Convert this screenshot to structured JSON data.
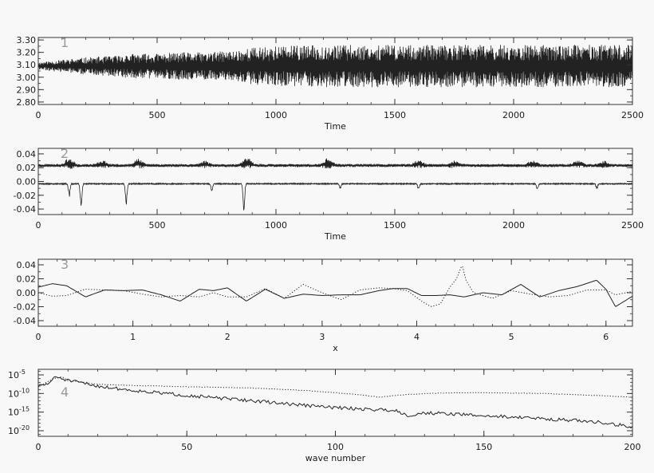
{
  "chart_data": [
    {
      "type": "line",
      "panel_label": "1",
      "xlabel": "Time",
      "xlim": [
        0,
        2500
      ],
      "ylim": [
        2.78,
        3.32
      ],
      "xticks": [
        0,
        500,
        1000,
        1500,
        2000,
        2500
      ],
      "xtick_labels": [
        "0",
        "500",
        "1000",
        "1500",
        "2000",
        "2500"
      ],
      "yticks": [
        2.8,
        2.9,
        3.0,
        3.1,
        3.2,
        3.3
      ],
      "ytick_labels": [
        "2.80",
        "2.90",
        "3.00",
        "3.10",
        "3.20",
        "3.30"
      ],
      "series": [
        {
          "style": "solid",
          "mean": 3.09,
          "envelope": {
            "x": [
              0,
              100,
              200,
              300,
              400,
              500,
              600,
              700,
              800,
              900,
              1000,
              1200,
              1400,
              1600,
              1800,
              2000,
              2200,
              2400,
              2500
            ],
            "amplitude": [
              0.03,
              0.05,
              0.07,
              0.08,
              0.1,
              0.1,
              0.11,
              0.11,
              0.12,
              0.15,
              0.16,
              0.17,
              0.17,
              0.17,
              0.17,
              0.17,
              0.17,
              0.17,
              0.17
            ]
          }
        }
      ]
    },
    {
      "type": "line",
      "panel_label": "2",
      "xlabel": "Time",
      "xlim": [
        0,
        2500
      ],
      "ylim": [
        -0.048,
        0.048
      ],
      "xticks": [
        0,
        500,
        1000,
        1500,
        2000,
        2500
      ],
      "xtick_labels": [
        "0",
        "500",
        "1000",
        "1500",
        "2000",
        "2500"
      ],
      "yticks": [
        -0.04,
        -0.02,
        0.0,
        0.02,
        0.04
      ],
      "ytick_labels": [
        "-0.04",
        "-0.02",
        "0.00",
        "0.02",
        "0.04"
      ],
      "series": [
        {
          "style": "solid",
          "baseline": 0.022,
          "bursts": [
            {
              "x": 130,
              "height": 0.012
            },
            {
              "x": 270,
              "height": 0.008
            },
            {
              "x": 420,
              "height": 0.01
            },
            {
              "x": 700,
              "height": 0.007
            },
            {
              "x": 880,
              "height": 0.012
            },
            {
              "x": 1220,
              "height": 0.012
            },
            {
              "x": 1600,
              "height": 0.008
            },
            {
              "x": 1750,
              "height": 0.007
            },
            {
              "x": 2080,
              "height": 0.008
            },
            {
              "x": 2270,
              "height": 0.007
            },
            {
              "x": 2380,
              "height": 0.007
            }
          ]
        },
        {
          "style": "solid",
          "baseline": -0.003,
          "dips": [
            {
              "x": 130,
              "depth": 0.02
            },
            {
              "x": 180,
              "depth": 0.037
            },
            {
              "x": 370,
              "depth": 0.032
            },
            {
              "x": 730,
              "depth": 0.012
            },
            {
              "x": 865,
              "depth": 0.04
            },
            {
              "x": 1270,
              "depth": 0.008
            },
            {
              "x": 1600,
              "depth": 0.008
            },
            {
              "x": 2100,
              "depth": 0.008
            },
            {
              "x": 2350,
              "depth": 0.007
            }
          ]
        }
      ]
    },
    {
      "type": "line",
      "panel_label": "3",
      "xlabel": "x",
      "xlim": [
        0,
        6.28
      ],
      "ylim": [
        -0.048,
        0.048
      ],
      "xticks": [
        0,
        1,
        2,
        3,
        4,
        5,
        6
      ],
      "xtick_labels": [
        "0",
        "1",
        "2",
        "3",
        "4",
        "5",
        "6"
      ],
      "yticks": [
        -0.04,
        -0.02,
        0.0,
        0.02,
        0.04
      ],
      "ytick_labels": [
        "-0.04",
        "-0.02",
        "0.00",
        "0.02",
        "0.04"
      ],
      "series": [
        {
          "style": "solid",
          "x": [
            0,
            0.15,
            0.3,
            0.5,
            0.7,
            0.9,
            1.1,
            1.3,
            1.5,
            1.7,
            1.85,
            2.0,
            2.2,
            2.4,
            2.6,
            2.8,
            3.0,
            3.2,
            3.4,
            3.6,
            3.75,
            3.9,
            4.05,
            4.2,
            4.35,
            4.5,
            4.7,
            4.9,
            5.1,
            5.3,
            5.5,
            5.7,
            5.9,
            6.0,
            6.1,
            6.28
          ],
          "y": [
            0.008,
            0.013,
            0.01,
            -0.006,
            0.004,
            0.003,
            0.004,
            -0.003,
            -0.012,
            0.005,
            0.003,
            0.007,
            -0.012,
            0.005,
            -0.008,
            -0.002,
            -0.004,
            -0.003,
            -0.003,
            0.003,
            0.006,
            0.006,
            -0.004,
            -0.004,
            -0.003,
            -0.006,
            0.0,
            -0.003,
            0.012,
            -0.006,
            0.003,
            0.009,
            0.018,
            0.005,
            -0.02,
            -0.005
          ]
        },
        {
          "style": "dotted",
          "x": [
            0,
            0.15,
            0.3,
            0.5,
            0.7,
            0.9,
            1.1,
            1.3,
            1.5,
            1.7,
            1.85,
            2.0,
            2.2,
            2.4,
            2.6,
            2.8,
            3.0,
            3.2,
            3.4,
            3.6,
            3.75,
            3.9,
            4.05,
            4.15,
            4.25,
            4.35,
            4.42,
            4.48,
            4.52,
            4.6,
            4.8,
            5.0,
            5.2,
            5.4,
            5.6,
            5.8,
            6.0,
            6.1,
            6.28
          ],
          "y": [
            0.0,
            -0.005,
            -0.004,
            0.005,
            0.004,
            0.003,
            -0.002,
            -0.006,
            -0.004,
            -0.006,
            0.0,
            -0.006,
            -0.006,
            0.006,
            -0.008,
            0.012,
            0.0,
            -0.01,
            0.004,
            0.007,
            0.006,
            0.003,
            -0.012,
            -0.02,
            -0.016,
            0.008,
            0.02,
            0.04,
            0.018,
            0.0,
            -0.008,
            0.003,
            -0.002,
            -0.006,
            -0.004,
            0.004,
            0.004,
            -0.003,
            0.002
          ]
        }
      ]
    },
    {
      "type": "line",
      "panel_label": "4",
      "xlabel": "wave number",
      "xlim": [
        0,
        200
      ],
      "log_y": true,
      "ylim_exponents": [
        -21.5,
        -3.5
      ],
      "xticks": [
        0,
        50,
        100,
        150,
        200
      ],
      "xtick_labels": [
        "0",
        "50",
        "100",
        "150",
        "200"
      ],
      "yticks": [
        -5,
        -10,
        -15,
        -20
      ],
      "ytick_labels": [
        "10",
        "10",
        "10",
        "10"
      ],
      "ytick_superscripts": [
        "-5",
        "-10",
        "-15",
        "-20"
      ],
      "series": [
        {
          "style": "solid",
          "x": [
            0,
            3,
            6,
            8,
            10,
            12,
            15,
            20,
            25,
            30,
            40,
            50,
            60,
            70,
            80,
            90,
            100,
            110,
            120,
            125,
            130,
            140,
            150,
            160,
            170,
            180,
            190,
            200
          ],
          "y_exponent": [
            -8,
            -7.5,
            -5.5,
            -6,
            -6.5,
            -6.8,
            -7.2,
            -8,
            -8.5,
            -9,
            -9.8,
            -10.5,
            -11.2,
            -11.8,
            -12.5,
            -13.2,
            -13.8,
            -14.2,
            -14.5,
            -16,
            -15.2,
            -15.5,
            -16,
            -16.3,
            -16.8,
            -17.2,
            -17.8,
            -19
          ]
        },
        {
          "style": "dotted",
          "x": [
            0,
            5,
            8,
            10,
            20,
            30,
            40,
            50,
            60,
            70,
            80,
            90,
            100,
            110,
            115,
            120,
            130,
            140,
            150,
            160,
            170,
            180,
            190,
            200
          ],
          "y_exponent": [
            -8.2,
            -6,
            -5.5,
            -6.5,
            -7.5,
            -7.8,
            -8,
            -8.2,
            -8.3,
            -8.5,
            -8.8,
            -9.2,
            -9.8,
            -10.5,
            -11,
            -10.5,
            -10,
            -9.8,
            -9.8,
            -9.9,
            -10,
            -10.3,
            -10.6,
            -11
          ]
        }
      ]
    }
  ]
}
